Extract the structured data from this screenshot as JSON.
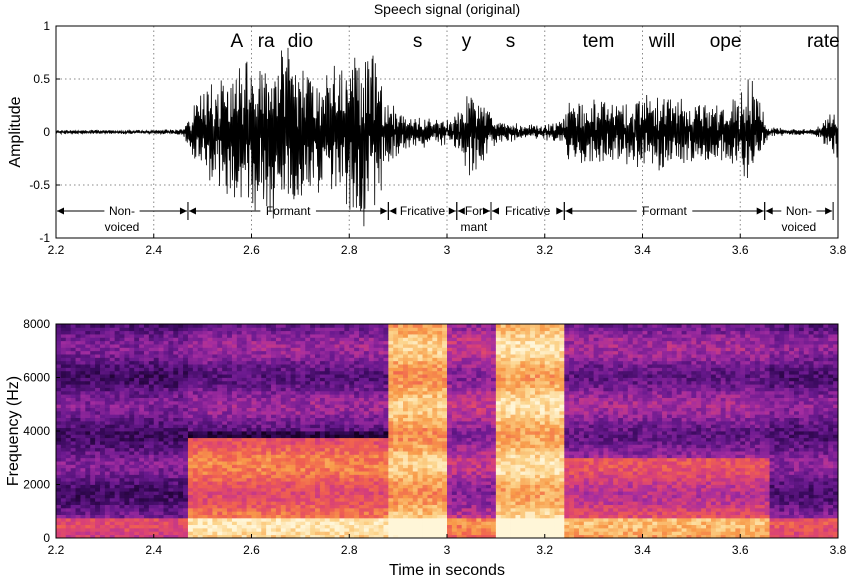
{
  "chart_data": [
    {
      "type": "line",
      "title": "Speech signal (original)",
      "xlabel": "",
      "ylabel": "Amplitude",
      "xlim": [
        2.2,
        3.8
      ],
      "ylim": [
        -1,
        1
      ],
      "grid": true,
      "x_ticks": [
        "2.2",
        "2.4",
        "2.6",
        "2.8",
        "3",
        "3.2",
        "3.4",
        "3.6",
        "3.8"
      ],
      "y_ticks": [
        "1",
        "0.5",
        "0",
        "-0.5",
        "-1"
      ],
      "envelope": {
        "t": [
          2.2,
          2.3,
          2.4,
          2.46,
          2.47,
          2.5,
          2.55,
          2.6,
          2.64,
          2.67,
          2.7,
          2.75,
          2.8,
          2.83,
          2.86,
          2.88,
          2.92,
          2.96,
          3.0,
          3.02,
          3.05,
          3.08,
          3.1,
          3.15,
          3.2,
          3.23,
          3.25,
          3.3,
          3.35,
          3.4,
          3.45,
          3.5,
          3.55,
          3.6,
          3.62,
          3.64,
          3.66,
          3.7,
          3.75,
          3.78,
          3.8
        ],
        "amp": [
          0.02,
          0.02,
          0.02,
          0.03,
          0.15,
          0.4,
          0.6,
          0.75,
          0.85,
          0.9,
          0.65,
          0.55,
          0.75,
          0.9,
          0.7,
          0.3,
          0.15,
          0.15,
          0.12,
          0.2,
          0.45,
          0.25,
          0.12,
          0.08,
          0.08,
          0.1,
          0.3,
          0.35,
          0.3,
          0.35,
          0.4,
          0.3,
          0.3,
          0.4,
          0.55,
          0.3,
          0.05,
          0.03,
          0.03,
          0.15,
          0.3
        ]
      },
      "annotations": {
        "syllables": [
          {
            "text": "A",
            "x": 2.57
          },
          {
            "text": "ra",
            "x": 2.63
          },
          {
            "text": "dio",
            "x": 2.7
          },
          {
            "text": "s",
            "x": 2.94
          },
          {
            "text": "y",
            "x": 3.04
          },
          {
            "text": "s",
            "x": 3.13
          },
          {
            "text": "tem",
            "x": 3.31
          },
          {
            "text": "will",
            "x": 3.44
          },
          {
            "text": "ope",
            "x": 3.57
          },
          {
            "text": "rate",
            "x": 3.77
          }
        ],
        "segments": [
          {
            "label": "Non-",
            "label2": "voiced",
            "start": 2.2,
            "end": 2.47
          },
          {
            "label": "Formant",
            "label2": "",
            "start": 2.47,
            "end": 2.88
          },
          {
            "label": "Fricative",
            "label2": "",
            "start": 2.88,
            "end": 3.02
          },
          {
            "label": "For",
            "label2": "mant",
            "start": 3.02,
            "end": 3.09
          },
          {
            "label": "Fricative",
            "label2": "",
            "start": 3.09,
            "end": 3.24
          },
          {
            "label": "Formant",
            "label2": "",
            "start": 3.24,
            "end": 3.65
          },
          {
            "label": "Non-",
            "label2": "voiced",
            "start": 3.65,
            "end": 3.79
          }
        ]
      }
    },
    {
      "type": "heatmap",
      "title": "",
      "xlabel": "Time in seconds",
      "ylabel": "Frequency (Hz)",
      "xlim": [
        2.2,
        3.8
      ],
      "ylim": [
        0,
        8000
      ],
      "x_ticks": [
        "2.2",
        "2.4",
        "2.6",
        "2.8",
        "3",
        "3.2",
        "3.4",
        "3.6",
        "3.8"
      ],
      "y_ticks": [
        "8000",
        "6000",
        "4000",
        "2000",
        "0"
      ],
      "colormap": [
        "#150022",
        "#3a0a5e",
        "#6b1a8f",
        "#a42da0",
        "#d84078",
        "#f06050",
        "#f89b4a",
        "#fcd38a",
        "#fff6d8"
      ],
      "energy_regions": [
        {
          "t0": 2.2,
          "t1": 2.47,
          "f0": 0,
          "f1": 8000,
          "level": 0.22
        },
        {
          "t0": 2.47,
          "t1": 2.88,
          "f0": 4000,
          "f1": 8000,
          "level": 0.28
        },
        {
          "t0": 2.47,
          "t1": 2.88,
          "f0": 0,
          "f1": 3800,
          "level": 0.62
        },
        {
          "t0": 2.88,
          "t1": 3.0,
          "f0": 0,
          "f1": 8000,
          "level": 0.8
        },
        {
          "t0": 3.0,
          "t1": 3.1,
          "f0": 0,
          "f1": 8000,
          "level": 0.38
        },
        {
          "t0": 3.1,
          "t1": 3.24,
          "f0": 0,
          "f1": 8000,
          "level": 0.85
        },
        {
          "t0": 3.24,
          "t1": 3.66,
          "f0": 0,
          "f1": 3000,
          "level": 0.5
        },
        {
          "t0": 3.24,
          "t1": 3.66,
          "f0": 3000,
          "f1": 8000,
          "level": 0.3
        },
        {
          "t0": 3.66,
          "t1": 3.8,
          "f0": 0,
          "f1": 8000,
          "level": 0.25
        }
      ]
    }
  ]
}
